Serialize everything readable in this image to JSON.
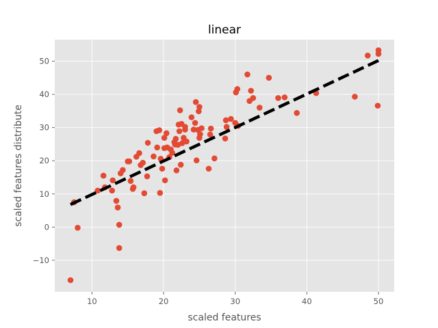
{
  "chart_data": {
    "type": "scatter",
    "title": "linear",
    "xlabel": "scaled features",
    "ylabel": "scaled features distribute",
    "xlim": [
      4.8,
      52.2
    ],
    "ylim": [
      -19.5,
      56.5
    ],
    "xticks": [
      10,
      20,
      30,
      40,
      50
    ],
    "yticks": [
      -10,
      0,
      10,
      20,
      30,
      40,
      50
    ],
    "grid": true,
    "colors": {
      "background": "#E5E5E5",
      "grid": "#FFFFFF",
      "points": "#E24A33",
      "fit_line": "#000000"
    },
    "series": [
      {
        "type": "scatter",
        "points": [
          [
            7.0,
            -16.0
          ],
          [
            7.5,
            7.5
          ],
          [
            8.0,
            -0.2
          ],
          [
            10.8,
            11.0
          ],
          [
            11.6,
            15.5
          ],
          [
            11.8,
            12.0
          ],
          [
            12.8,
            11.0
          ],
          [
            12.9,
            14.1
          ],
          [
            13.4,
            7.9
          ],
          [
            13.6,
            5.9
          ],
          [
            13.8,
            0.7
          ],
          [
            13.8,
            -6.3
          ],
          [
            14.0,
            16.2
          ],
          [
            14.3,
            17.2
          ],
          [
            15.0,
            19.8
          ],
          [
            15.2,
            19.8
          ],
          [
            15.4,
            13.9
          ],
          [
            15.7,
            11.5
          ],
          [
            15.8,
            12.0
          ],
          [
            16.2,
            21.2
          ],
          [
            16.6,
            22.3
          ],
          [
            16.8,
            18.7
          ],
          [
            17.1,
            19.4
          ],
          [
            17.3,
            10.2
          ],
          [
            17.7,
            15.3
          ],
          [
            17.8,
            25.4
          ],
          [
            18.6,
            21.3
          ],
          [
            19.0,
            28.9
          ],
          [
            19.1,
            24.0
          ],
          [
            19.4,
            29.2
          ],
          [
            19.5,
            10.3
          ],
          [
            19.6,
            20.6
          ],
          [
            19.8,
            17.6
          ],
          [
            20.1,
            23.8
          ],
          [
            20.1,
            26.9
          ],
          [
            20.2,
            14.1
          ],
          [
            20.4,
            28.3
          ],
          [
            20.5,
            24.0
          ],
          [
            20.8,
            21.1
          ],
          [
            21.0,
            23.4
          ],
          [
            21.2,
            22.4
          ],
          [
            21.5,
            25.6
          ],
          [
            21.6,
            24.9
          ],
          [
            21.7,
            26.6
          ],
          [
            21.8,
            17.1
          ],
          [
            22.0,
            24.8
          ],
          [
            22.1,
            30.9
          ],
          [
            22.2,
            28.9
          ],
          [
            22.3,
            35.2
          ],
          [
            22.4,
            18.8
          ],
          [
            22.5,
            31.1
          ],
          [
            22.6,
            25.3
          ],
          [
            22.8,
            26.9
          ],
          [
            23.0,
            30.2
          ],
          [
            23.0,
            29.4
          ],
          [
            23.2,
            25.8
          ],
          [
            23.9,
            33.1
          ],
          [
            24.2,
            29.4
          ],
          [
            24.4,
            31.4
          ],
          [
            24.5,
            37.7
          ],
          [
            24.6,
            20.1
          ],
          [
            24.8,
            29.3
          ],
          [
            24.9,
            34.9
          ],
          [
            25.0,
            36.2
          ],
          [
            25.0,
            26.9
          ],
          [
            25.1,
            28.0
          ],
          [
            25.3,
            29.8
          ],
          [
            26.3,
            17.6
          ],
          [
            26.5,
            27.9
          ],
          [
            26.6,
            29.7
          ],
          [
            27.1,
            20.7
          ],
          [
            28.6,
            26.7
          ],
          [
            28.7,
            32.2
          ],
          [
            28.8,
            30.2
          ],
          [
            29.4,
            32.6
          ],
          [
            30.0,
            31.4
          ],
          [
            30.1,
            40.6
          ],
          [
            30.3,
            41.6
          ],
          [
            30.4,
            30.5
          ],
          [
            31.7,
            46.0
          ],
          [
            32.0,
            38.0
          ],
          [
            32.2,
            41.1
          ],
          [
            32.5,
            38.9
          ],
          [
            33.4,
            36.0
          ],
          [
            34.7,
            45.0
          ],
          [
            36.0,
            38.9
          ],
          [
            36.9,
            39.1
          ],
          [
            38.6,
            34.4
          ],
          [
            41.3,
            40.4
          ],
          [
            46.7,
            39.3
          ],
          [
            48.5,
            51.7
          ],
          [
            49.9,
            36.6
          ],
          [
            50.0,
            53.3
          ],
          [
            50.0,
            52.2
          ]
        ]
      },
      {
        "type": "line",
        "style": "dashed",
        "x": [
          7.0,
          50.0
        ],
        "y": [
          6.8,
          50.2
        ]
      }
    ]
  }
}
